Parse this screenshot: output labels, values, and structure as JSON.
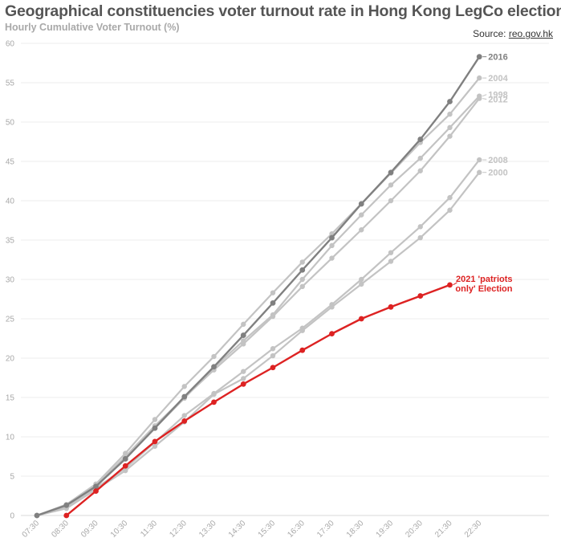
{
  "header": {
    "title": "Geographical constituencies voter turnout rate in Hong Kong LegCo elections",
    "subtitle": "Hourly Cumulative Voter Turnout (%)",
    "source_prefix": "Source: ",
    "source_link": "reo.gov.hk"
  },
  "colors": {
    "highlight": "#dd2222",
    "dark": "#808080",
    "light": "#c3c3c3",
    "grid": "#ececec",
    "tick": "#a8a8a8"
  },
  "chart_data": {
    "type": "line",
    "title": "Geographical constituencies voter turnout rate in Hong Kong LegCo elections",
    "subtitle": "Hourly Cumulative Voter Turnout (%)",
    "xlabel": "",
    "ylabel": "",
    "ylim": [
      0,
      60
    ],
    "yticks": [
      0,
      5,
      10,
      15,
      20,
      25,
      30,
      35,
      40,
      45,
      50,
      55,
      60
    ],
    "grid": true,
    "x": [
      "07:30",
      "08:30",
      "09:30",
      "10:30",
      "11:30",
      "12:30",
      "13:30",
      "14:30",
      "15:30",
      "16:30",
      "17:30",
      "18:30",
      "19:30",
      "20:30",
      "21:30",
      "22:30"
    ],
    "series": [
      {
        "name": "2000",
        "style": "light",
        "labels": [
          "2000"
        ],
        "values": [
          0,
          0.9,
          3.3,
          5.7,
          8.8,
          11.9,
          15.4,
          17.4,
          20.3,
          23.5,
          26.5,
          29.4,
          32.3,
          35.3,
          38.8,
          43.6
        ]
      },
      {
        "name": "2008",
        "style": "light",
        "labels": [
          "2008"
        ],
        "values": [
          0,
          1.1,
          3.5,
          6.0,
          9.3,
          12.7,
          15.5,
          18.3,
          21.2,
          23.8,
          26.8,
          30.0,
          33.4,
          36.7,
          40.4,
          45.2
        ]
      },
      {
        "name": "2012",
        "style": "light",
        "labels": [
          "2012"
        ],
        "values": [
          0,
          1.3,
          3.8,
          7.5,
          11.4,
          15.0,
          18.5,
          21.8,
          25.3,
          29.1,
          32.7,
          36.3,
          40.0,
          43.8,
          48.2,
          53.0
        ]
      },
      {
        "name": "1998",
        "style": "light",
        "labels": [
          "1998"
        ],
        "values": [
          0,
          1.2,
          3.7,
          7.4,
          11.1,
          14.9,
          18.8,
          22.2,
          25.5,
          30.0,
          34.3,
          38.2,
          42.0,
          45.4,
          49.3,
          53.3
        ]
      },
      {
        "name": "2004",
        "style": "light",
        "labels": [
          "2004"
        ],
        "values": [
          0,
          1.4,
          4.0,
          7.9,
          12.2,
          16.4,
          20.2,
          24.3,
          28.3,
          32.2,
          35.8,
          39.6,
          43.5,
          47.4,
          51.0,
          55.6
        ]
      },
      {
        "name": "2016",
        "style": "dark",
        "labels": [
          "2016"
        ],
        "values": [
          0,
          1.3,
          3.7,
          7.2,
          11.1,
          15.1,
          18.9,
          22.9,
          27.0,
          31.2,
          35.3,
          39.6,
          43.6,
          47.8,
          52.6,
          58.3
        ]
      },
      {
        "name": "2021 'patriots only' Election",
        "style": "highlight",
        "labels": [
          "2021 'patriots",
          "only' Election"
        ],
        "values": [
          null,
          0,
          3.1,
          6.3,
          9.4,
          12.0,
          14.4,
          16.7,
          18.8,
          21.0,
          23.1,
          25.0,
          26.5,
          27.9,
          29.3,
          null
        ]
      }
    ]
  }
}
